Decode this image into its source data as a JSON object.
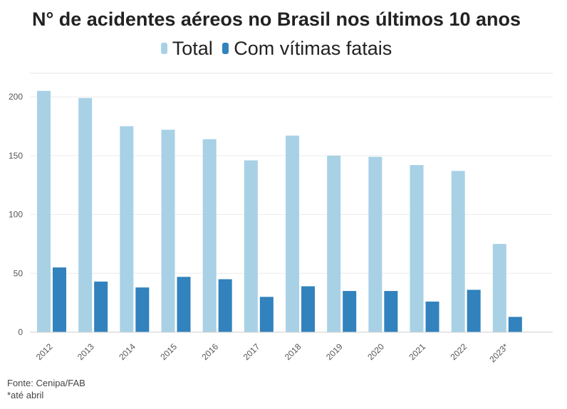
{
  "chart_data": {
    "type": "bar",
    "title": "N° de acidentes aéreos no Brasil nos últimos 10 anos",
    "categories": [
      "2012",
      "2013",
      "2014",
      "2015",
      "2016",
      "2017",
      "2018",
      "2019",
      "2020",
      "2021",
      "2022",
      "2023*"
    ],
    "series": [
      {
        "name": "Total",
        "color": "#a8d1e6",
        "values": [
          205,
          199,
          175,
          172,
          164,
          146,
          167,
          150,
          149,
          142,
          137,
          75
        ]
      },
      {
        "name": "Com vítimas fatais",
        "color": "#3182bd",
        "values": [
          55,
          43,
          38,
          47,
          45,
          30,
          39,
          35,
          35,
          26,
          36,
          13
        ]
      }
    ],
    "ylim": [
      0,
      220
    ],
    "yticks": [
      0,
      50,
      100,
      150,
      200
    ],
    "grid": true,
    "legend_position": "top",
    "xlabel": "",
    "ylabel": ""
  },
  "source": "Fonte: Cenipa/FAB",
  "note": "*até abril"
}
